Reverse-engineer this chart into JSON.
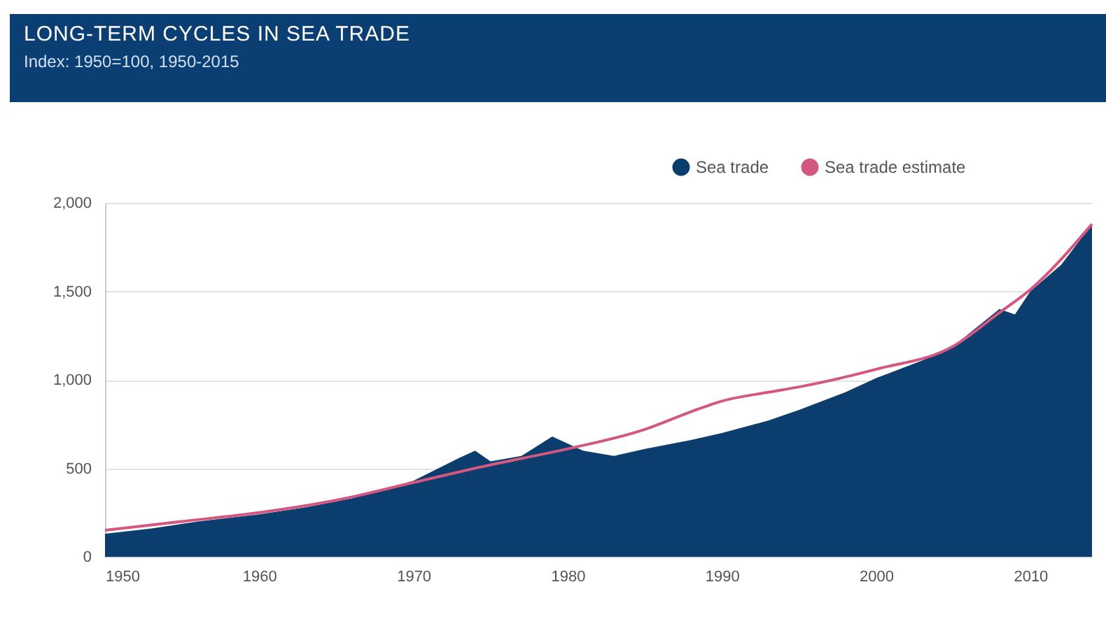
{
  "chart_data": {
    "type": "area",
    "title": "LONG-TERM CYCLES IN SEA TRADE",
    "subtitle": "Index: 1950=100, 1950-2015",
    "series": [
      {
        "name": "Sea trade",
        "color": "#0b3d6e",
        "x": [
          1950,
          1953,
          1956,
          1960,
          1963,
          1966,
          1970,
          1973,
          1974,
          1975,
          1977,
          1979,
          1981,
          1983,
          1985,
          1988,
          1990,
          1993,
          1995,
          1998,
          2000,
          2003,
          2005,
          2008,
          2009,
          2010,
          2012,
          2014
        ],
        "values": [
          130,
          160,
          200,
          240,
          280,
          330,
          430,
          560,
          600,
          540,
          570,
          680,
          600,
          570,
          610,
          660,
          700,
          770,
          830,
          930,
          1010,
          1110,
          1190,
          1400,
          1370,
          1500,
          1650,
          1880
        ]
      },
      {
        "name": "Sea trade estimate",
        "type": "line",
        "color": "#d4577f",
        "x": [
          1950,
          1955,
          1960,
          1965,
          1970,
          1975,
          1980,
          1985,
          1988,
          1990,
          1993,
          1995,
          2000,
          2005,
          2008,
          2010,
          2014
        ],
        "values": [
          150,
          200,
          250,
          320,
          420,
          520,
          610,
          720,
          820,
          880,
          930,
          960,
          1060,
          1190,
          1380,
          1510,
          1880
        ]
      }
    ],
    "xlim": [
      1950,
      2014
    ],
    "xticks": [
      1950,
      1960,
      1970,
      1980,
      1990,
      2000,
      2010
    ],
    "ylim": [
      0,
      2000
    ],
    "yticks": [
      0,
      {
        "value": 500,
        "label": "500"
      },
      {
        "value": 1000,
        "label": "1,000"
      },
      {
        "value": 1500,
        "label": "1,500"
      },
      {
        "value": 2000,
        "label": "2,000"
      }
    ],
    "grid": "y",
    "legend": "top right"
  }
}
